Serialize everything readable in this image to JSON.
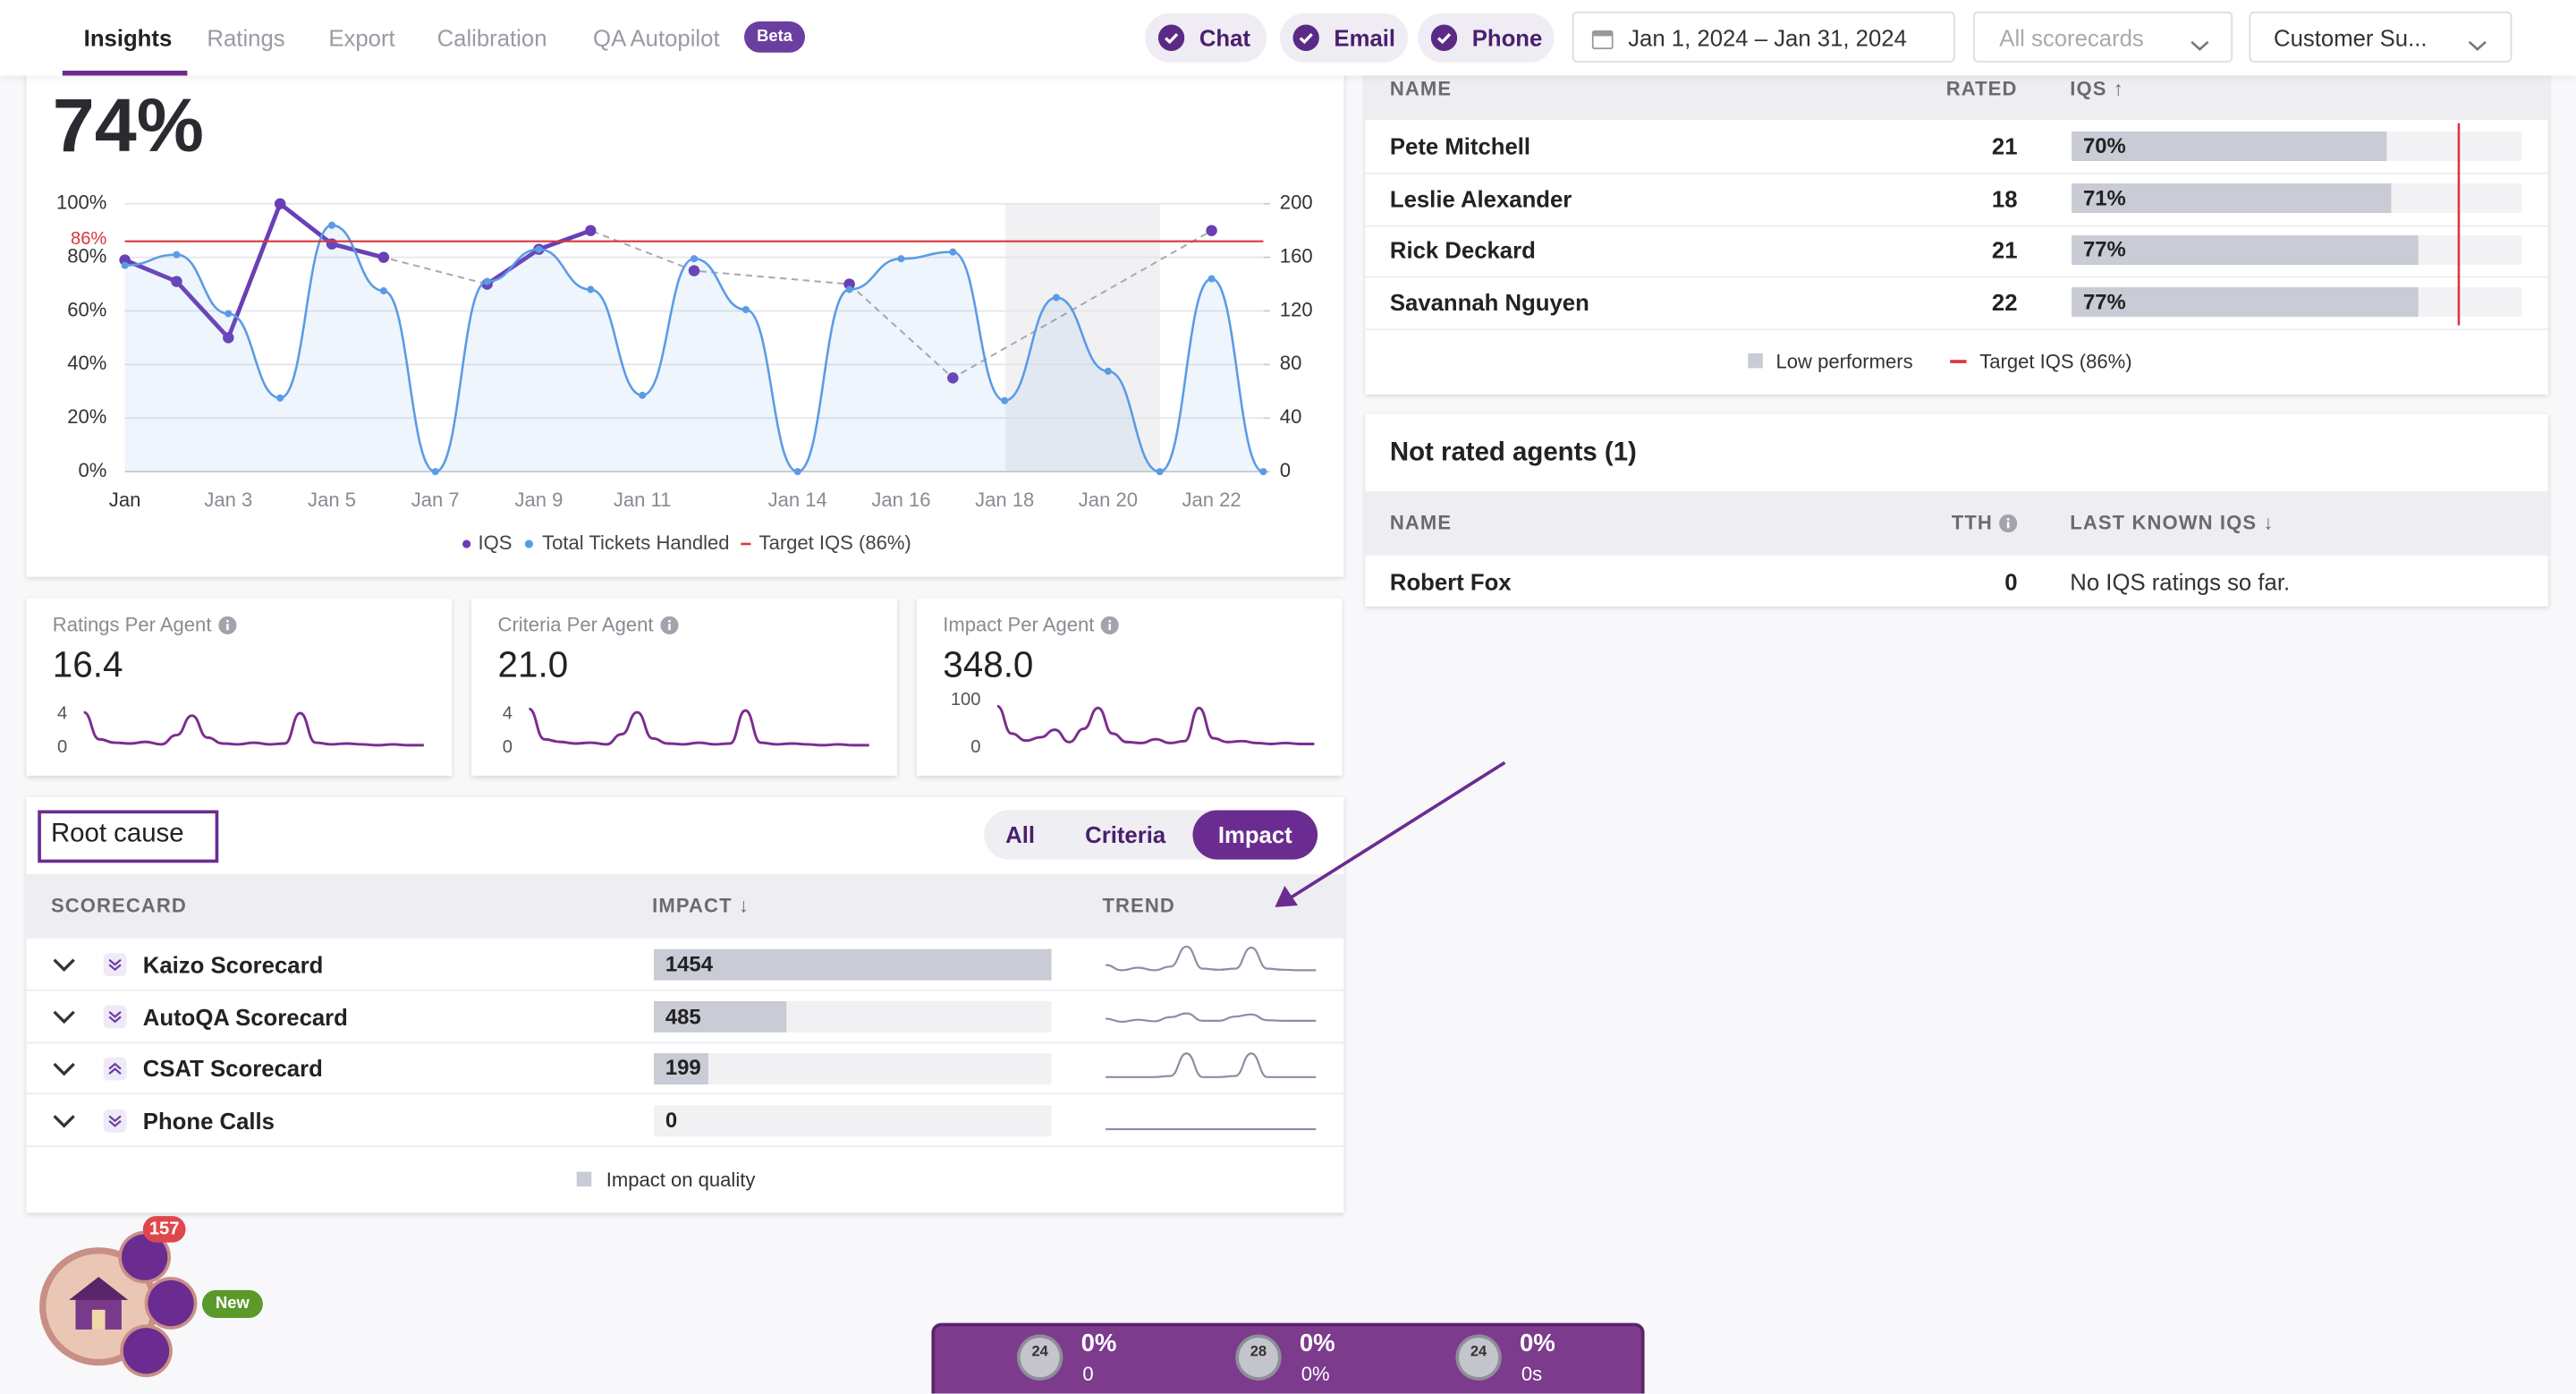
{
  "nav": {
    "tabs": [
      "Insights",
      "Ratings",
      "Export",
      "Calibration",
      "QA Autopilot"
    ],
    "badge": "Beta",
    "active_tab": 0,
    "channels": [
      "Chat",
      "Email",
      "Phone"
    ],
    "date_range": "Jan 1, 2024 – Jan 31, 2024",
    "scorecard_filter": "All scorecards",
    "team_filter": "Customer Su..."
  },
  "iqs_kpi": "74%",
  "chart_data": [
    {
      "type": "line",
      "categories": [
        "Jan",
        null,
        "Jan 3",
        null,
        "Jan 5",
        null,
        "Jan 7",
        null,
        "Jan 9",
        null,
        "Jan 11",
        null,
        null,
        "Jan 14",
        null,
        "Jan 16",
        null,
        "Jan 18",
        null,
        "Jan 20",
        null,
        "Jan 22",
        null
      ],
      "series": [
        {
          "name": "IQS",
          "color": "#6a3fb5",
          "values": [
            79,
            71,
            50,
            100,
            85,
            80,
            null,
            70,
            83,
            90,
            null,
            75,
            null,
            null,
            70,
            null,
            35,
            null,
            null,
            null,
            null,
            90,
            null
          ]
        },
        {
          "name": "Total Tickets Handled",
          "color": "#5b9be6",
          "axis": "y2",
          "values": [
            154,
            162,
            118,
            55,
            184,
            135,
            0,
            142,
            166,
            136,
            57,
            159,
            121,
            0,
            136,
            159,
            164,
            53,
            130,
            75,
            0,
            144,
            0
          ]
        }
      ],
      "connect_gaps": true,
      "target": {
        "value": 86,
        "label": "86%",
        "legend": "Target IQS (86%)",
        "color": "#d9363e"
      },
      "ylim": [
        0,
        100
      ],
      "yticks": [
        {
          "value": 0,
          "label": "0%"
        },
        {
          "value": 20,
          "label": "20%"
        },
        {
          "value": 40,
          "label": "40%"
        },
        {
          "value": 60,
          "label": "60%"
        },
        {
          "value": 80,
          "label": "80%"
        },
        {
          "value": 100,
          "label": "100%"
        }
      ],
      "y2lim": [
        0,
        200
      ],
      "y2ticks": [
        0,
        40,
        80,
        120,
        160,
        200
      ],
      "grid": true
    },
    {
      "type": "sparkline",
      "title": "Ratings Per Agent",
      "value_text": "16.4",
      "color": "#7b2d8e",
      "ylim": [
        0,
        7
      ],
      "yticks": [
        0,
        4
      ],
      "values": [
        4.2,
        1,
        0.6,
        0.5,
        0.7,
        0.4,
        1.5,
        3.8,
        1.2,
        0.5,
        0.4,
        0.6,
        0.4,
        0.5,
        4.1,
        0.6,
        0.4,
        0.5,
        0.4,
        0.3,
        0.4,
        0.3,
        0.3
      ]
    },
    {
      "type": "sparkline",
      "title": "Criteria Per Agent",
      "value_text": "21.0",
      "color": "#7b2d8e",
      "ylim": [
        0,
        7
      ],
      "yticks": [
        0,
        4
      ],
      "values": [
        4.6,
        1,
        0.7,
        0.5,
        0.6,
        0.4,
        1.6,
        4.2,
        1.1,
        0.5,
        0.4,
        0.6,
        0.4,
        0.5,
        4.4,
        0.6,
        0.4,
        0.5,
        0.4,
        0.3,
        0.4,
        0.3,
        0.3
      ]
    },
    {
      "type": "sparkline",
      "title": "Impact Per Agent",
      "value_text": "348.0",
      "color": "#7b2d8e",
      "ylim": [
        0,
        125
      ],
      "yticks": [
        0,
        100
      ],
      "values": [
        88,
        30,
        15,
        22,
        38,
        12,
        40,
        84,
        30,
        12,
        10,
        18,
        10,
        14,
        84,
        20,
        12,
        14,
        10,
        8,
        10,
        8,
        8
      ]
    }
  ],
  "root_cause": {
    "title": "Root cause",
    "filters": [
      "All",
      "Criteria",
      "Impact"
    ],
    "active_filter": 2,
    "columns": [
      "SCORECARD",
      "IMPACT ↓",
      "TREND"
    ],
    "xlim": [
      0,
      1454
    ],
    "trend_ylim": [
      0,
      5
    ],
    "rows": [
      {
        "name": "Kaizo Scorecard",
        "direction": "down",
        "impact": 1454,
        "trend": [
          1.5,
          0.5,
          1,
          0.5,
          1.2,
          5,
          0.8,
          0.6,
          0.8,
          4.8,
          0.8,
          0.6,
          0.5,
          0.5
        ]
      },
      {
        "name": "AutoQA Scorecard",
        "direction": "down",
        "impact": 485,
        "trend": [
          1.2,
          0.6,
          1,
          0.7,
          1.5,
          2.2,
          0.8,
          0.8,
          1.6,
          2,
          0.9,
          0.8,
          0.8,
          0.8
        ]
      },
      {
        "name": "CSAT Scorecard",
        "direction": "up",
        "impact": 199,
        "trend": [
          0,
          0,
          0,
          0,
          0.2,
          4.5,
          0,
          0,
          0.2,
          4.5,
          0,
          0,
          0,
          0
        ]
      },
      {
        "name": "Phone Calls",
        "direction": "down",
        "impact": 0,
        "trend": [
          0,
          0,
          0,
          0,
          0,
          0,
          0,
          0,
          0,
          0,
          0,
          0,
          0,
          0
        ]
      }
    ],
    "legend": "Impact on quality"
  },
  "agents": {
    "columns": [
      "NAME",
      "RATED",
      "IQS ↑"
    ],
    "xlim": [
      0,
      100
    ],
    "target": 86,
    "rows": [
      {
        "name": "Pete Mitchell",
        "rated": 21,
        "iqs": 70,
        "iqs_label": "70%"
      },
      {
        "name": "Leslie Alexander",
        "rated": 18,
        "iqs": 71,
        "iqs_label": "71%"
      },
      {
        "name": "Rick Deckard",
        "rated": 21,
        "iqs": 77,
        "iqs_label": "77%"
      },
      {
        "name": "Savannah Nguyen",
        "rated": 22,
        "iqs": 77,
        "iqs_label": "77%"
      }
    ],
    "legend": [
      "Low performers",
      "Target IQS (86%)"
    ]
  },
  "not_rated": {
    "title": "Not rated agents (1)",
    "columns": [
      "NAME",
      "TTH",
      "LAST KNOWN IQS ↓"
    ],
    "rows": [
      {
        "name": "Robert Fox",
        "tth": 0,
        "last_iqs": "No IQS ratings so far."
      }
    ]
  },
  "widget": {
    "notifications": "157",
    "badge": "New"
  },
  "bottom_bar": {
    "items": [
      {
        "level": "24",
        "percent": "0%",
        "sub": "0"
      },
      {
        "level": "28",
        "percent": "0%",
        "sub": "0%"
      },
      {
        "level": "24",
        "percent": "0%",
        "sub": "0s"
      }
    ]
  }
}
